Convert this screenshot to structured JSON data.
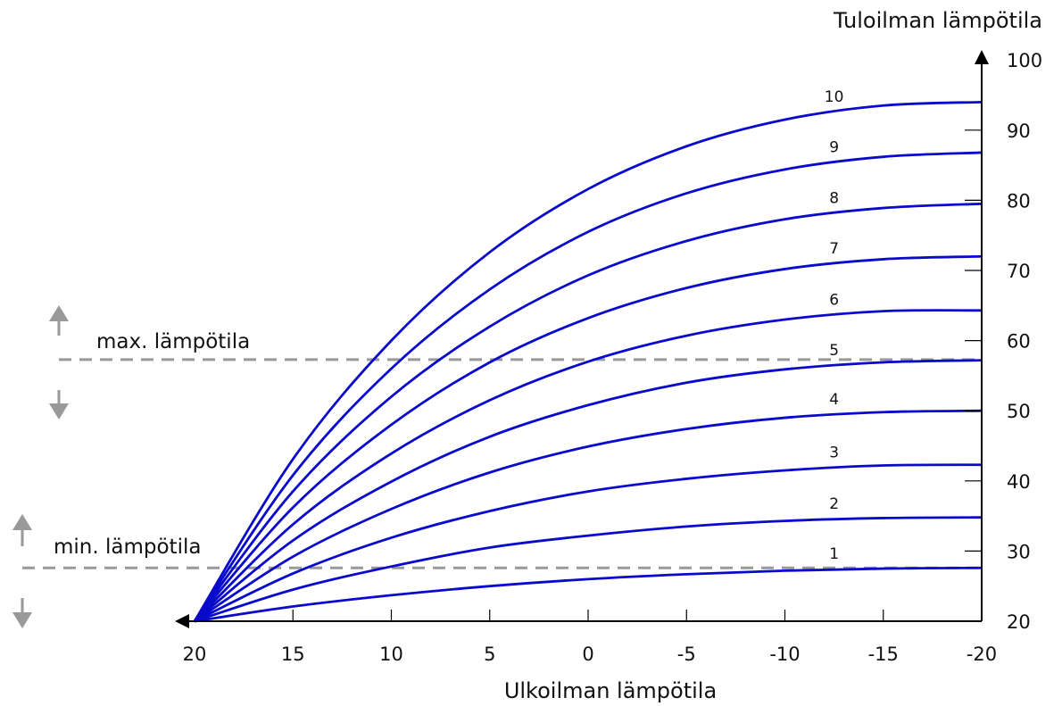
{
  "chart_data": {
    "type": "line",
    "title": "",
    "xlabel": "Ulkoilman lämpötila",
    "ylabel": "Tuloilman lämpötila",
    "x_reversed": true,
    "xlim": [
      20,
      -20
    ],
    "ylim": [
      20,
      100
    ],
    "x_ticks": [
      "20",
      "15",
      "10",
      "5",
      "0",
      "-5",
      "-10",
      "-15",
      "-20"
    ],
    "y_ticks": [
      "20",
      "30",
      "40",
      "50",
      "60",
      "70",
      "80",
      "90",
      "100"
    ],
    "grid": false,
    "x": [
      20,
      15,
      10,
      5,
      0,
      -5,
      -10,
      -15,
      -20
    ],
    "series": [
      {
        "name": "1",
        "values": [
          20,
          22.1,
          23.7,
          25.0,
          26.0,
          26.7,
          27.2,
          27.5,
          27.6
        ]
      },
      {
        "name": "2",
        "values": [
          20,
          24.5,
          27.8,
          30.5,
          32.2,
          33.5,
          34.3,
          34.7,
          34.8
        ]
      },
      {
        "name": "3",
        "values": [
          20,
          26.8,
          31.9,
          35.7,
          38.5,
          40.3,
          41.5,
          42.2,
          42.3
        ]
      },
      {
        "name": "4",
        "values": [
          20,
          29.2,
          36.0,
          41.2,
          44.9,
          47.4,
          49.0,
          49.8,
          50.0
        ]
      },
      {
        "name": "5",
        "values": [
          20,
          31.5,
          39.9,
          46.3,
          50.8,
          54.0,
          55.9,
          56.9,
          57.2
        ]
      },
      {
        "name": "6",
        "values": [
          20,
          33.8,
          43.9,
          51.5,
          57.0,
          60.7,
          63.0,
          64.2,
          64.3
        ]
      },
      {
        "name": "7",
        "values": [
          20,
          36.2,
          48.0,
          56.9,
          63.2,
          67.5,
          70.2,
          71.6,
          72.0
        ]
      },
      {
        "name": "8",
        "values": [
          20,
          38.5,
          52.0,
          62.0,
          69.3,
          74.2,
          77.3,
          78.9,
          79.5
        ]
      },
      {
        "name": "9",
        "values": [
          20,
          40.8,
          56.0,
          67.3,
          75.5,
          81.0,
          84.4,
          86.2,
          86.8
        ]
      },
      {
        "name": "10",
        "values": [
          20,
          43.1,
          60.0,
          72.6,
          81.6,
          87.7,
          91.5,
          93.5,
          94.0
        ]
      }
    ],
    "series_color": "#0a0acc",
    "limit_lines": [
      {
        "label": "max. lämpötila",
        "value": 57.3
      },
      {
        "label": "min. lämpötila",
        "value": 27.6
      }
    ],
    "limit_color": "#999999"
  }
}
